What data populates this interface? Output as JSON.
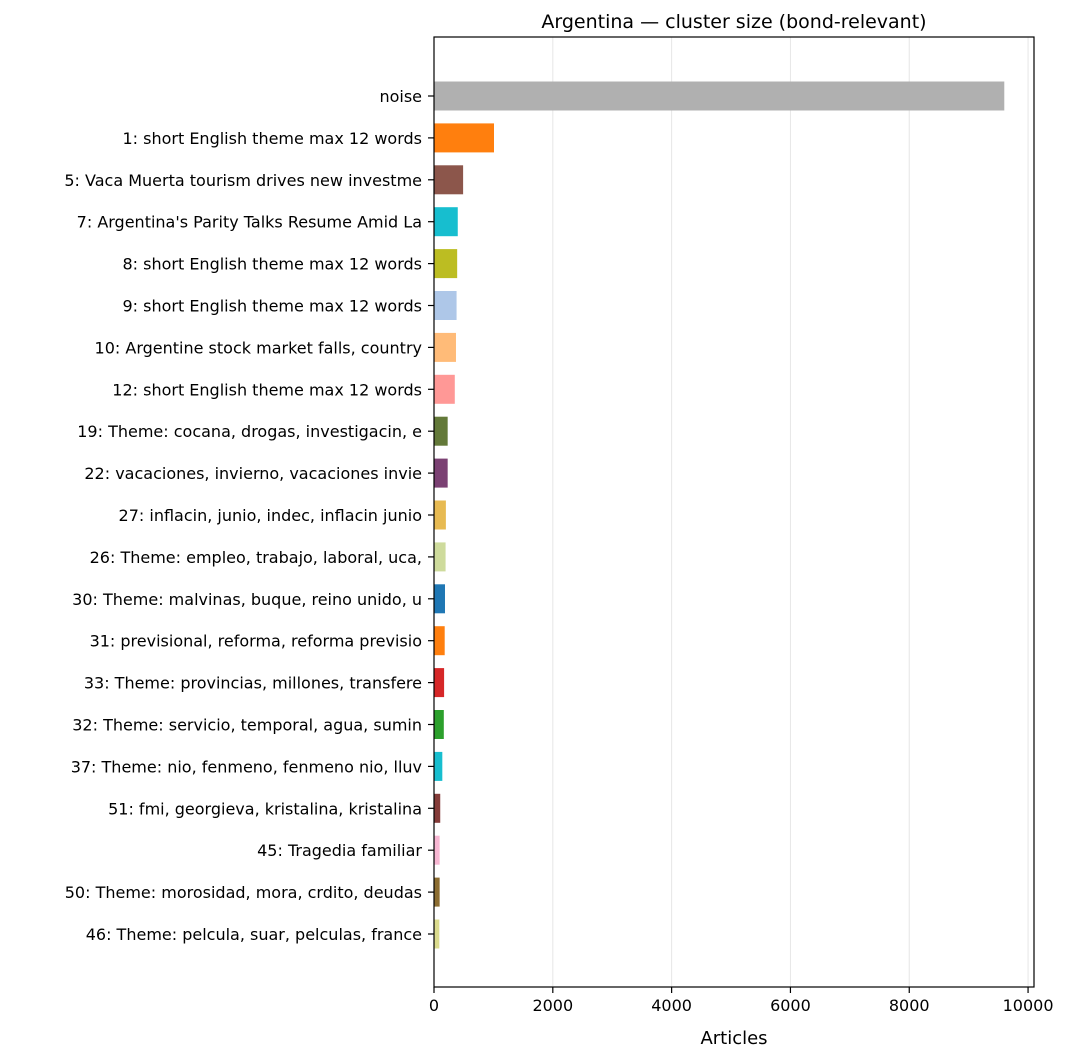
{
  "chart_data": {
    "type": "bar",
    "orientation": "horizontal",
    "title": "Argentina — cluster size (bond-relevant)",
    "xlabel": "Articles",
    "ylabel": "",
    "xlim": [
      0,
      10100
    ],
    "x_ticks": [
      "0",
      "2000",
      "4000",
      "6000",
      "8000",
      "10000"
    ],
    "x_tick_values": [
      0,
      2000,
      4000,
      6000,
      8000,
      10000
    ],
    "grid": "vertical",
    "legend": "none",
    "categories": [
      "noise",
      "1: short English theme max 12 words",
      "5: Vaca Muerta tourism drives new investme",
      "7: Argentina's Parity Talks Resume Amid La",
      "8: short English theme max 12 words",
      "9: short English theme max 12 words",
      "10: Argentine stock market falls, country ",
      "12: short English theme max 12 words",
      "19: Theme: cocana, drogas, investigacin, e",
      "22: vacaciones, invierno, vacaciones invie",
      "27: inflacin, junio, indec, inflacin junio",
      "26: Theme: empleo, trabajo, laboral, uca, ",
      "30: Theme: malvinas, buque, reino unido, u",
      "31: previsional, reforma, reforma previsio",
      "33: Theme: provincias, millones, transfere",
      "32: Theme: servicio, temporal, agua, sumin",
      "37: Theme: nio, fenmeno, fenmeno nio, lluv",
      "51: fmi, georgieva, kristalina, kristalina",
      "45: Tragedia familiar",
      "50: Theme: morosidad, mora, crdito, deudas",
      "46: Theme: pelcula, suar, pelculas, france"
    ],
    "values": [
      9600,
      1010,
      490,
      400,
      390,
      380,
      370,
      350,
      230,
      230,
      200,
      195,
      185,
      180,
      170,
      165,
      140,
      105,
      95,
      95,
      90
    ],
    "colors": [
      "#b0b0b0",
      "#ff7f0e",
      "#8c564b",
      "#17becf",
      "#bcbd22",
      "#aec7e8",
      "#ffbb78",
      "#ff9896",
      "#637939",
      "#7b4173",
      "#e7ba52",
      "#cedb9c",
      "#1f77b4",
      "#ff7f0e",
      "#d62728",
      "#2ca02c",
      "#17becf",
      "#843c39",
      "#f7b6d2",
      "#8c6d31",
      "#dbdb8d"
    ]
  }
}
